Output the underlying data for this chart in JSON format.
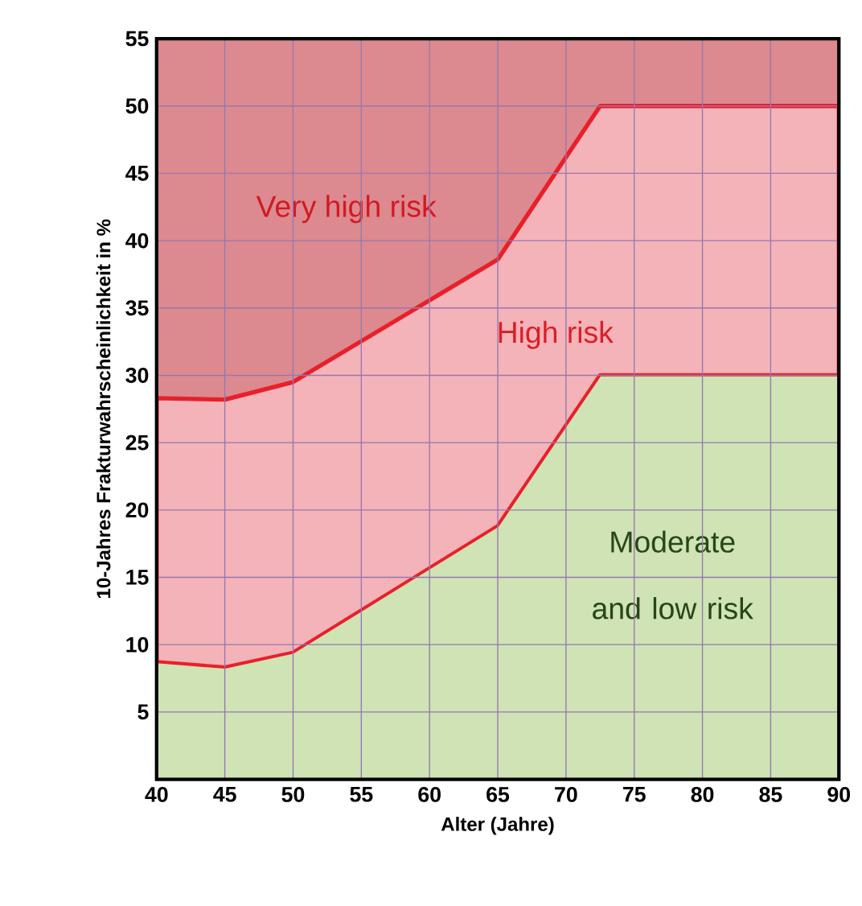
{
  "chart_data": {
    "type": "area",
    "stacked": true,
    "xlabel": "Alter (Jahre)",
    "ylabel": "10-Jahres Frakturwahrscheinlichkeit in %",
    "x": [
      40,
      45,
      50,
      65,
      72.5,
      90
    ],
    "series": [
      {
        "name": "Moderate and low risk",
        "color": "#cfe3b5",
        "values": [
          8.7,
          8.3,
          9.4,
          18.8,
          30,
          30
        ]
      },
      {
        "name": "High risk",
        "color": "#f4b3b8",
        "values": [
          19.6,
          19.9,
          20.1,
          19.8,
          20,
          20
        ]
      },
      {
        "name": "Very high risk",
        "color": "#dc8a8f",
        "values": [
          26.7,
          26.8,
          25.5,
          16.4,
          5,
          5
        ]
      }
    ],
    "xlim": [
      40,
      90
    ],
    "xticks": [
      40,
      45,
      50,
      55,
      60,
      65,
      70,
      75,
      80,
      85,
      90
    ],
    "ylim": [
      0,
      55
    ],
    "yticks": [
      5,
      10,
      15,
      20,
      25,
      30,
      35,
      40,
      45,
      50,
      55
    ],
    "grid": true
  }
}
